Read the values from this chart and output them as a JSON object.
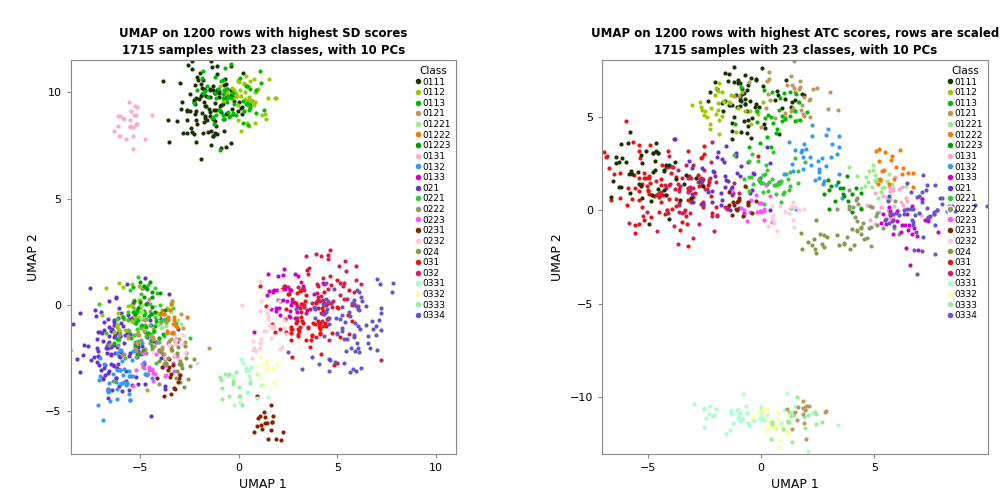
{
  "title1": "UMAP on 1200 rows with highest SD scores\n1715 samples with 23 classes, with 10 PCs",
  "title2": "UMAP on 1200 rows with highest ATC scores, rows are scaled\n1715 samples with 23 classes, with 10 PCs",
  "xlabel": "UMAP 1",
  "ylabel": "UMAP 2",
  "legend_title": "Class",
  "classes": [
    "0111",
    "0112",
    "0113",
    "0121",
    "01221",
    "01222",
    "01223",
    "0131",
    "0132",
    "0133",
    "021",
    "0221",
    "0222",
    "0223",
    "0231",
    "0232",
    "024",
    "031",
    "032",
    "0331",
    "0332",
    "0333",
    "0334"
  ],
  "class_colors": {
    "0111": "#1a3300",
    "0112": "#99cc00",
    "0113": "#00bb00",
    "0121": "#bc9a5a",
    "01221": "#99ee88",
    "01222": "#ff7700",
    "01223": "#009900",
    "0131": "#ffaacc",
    "0132": "#3399ff",
    "0133": "#cc00cc",
    "021": "#6633cc",
    "0221": "#33cc33",
    "0222": "#8b9a6a",
    "0223": "#ff55ff",
    "0231": "#882200",
    "0232": "#ffccdd",
    "024": "#889944",
    "031": "#ee1111",
    "032": "#cc2255",
    "0331": "#aaffcc",
    "0332": "#ffffaa",
    "0333": "#99ee99",
    "0334": "#6655cc"
  },
  "bg_color": "#ffffff",
  "left_xlim": [
    -8.5,
    11
  ],
  "left_ylim": [
    -7,
    11.5
  ],
  "left_xticks": [
    -5,
    0,
    5,
    10
  ],
  "left_yticks": [
    -5,
    0,
    5,
    10
  ],
  "right_xlim": [
    -7,
    10
  ],
  "right_ylim": [
    -13,
    8
  ],
  "right_xticks": [
    -5,
    0,
    5
  ],
  "right_yticks": [
    -10,
    -5,
    0,
    5
  ]
}
